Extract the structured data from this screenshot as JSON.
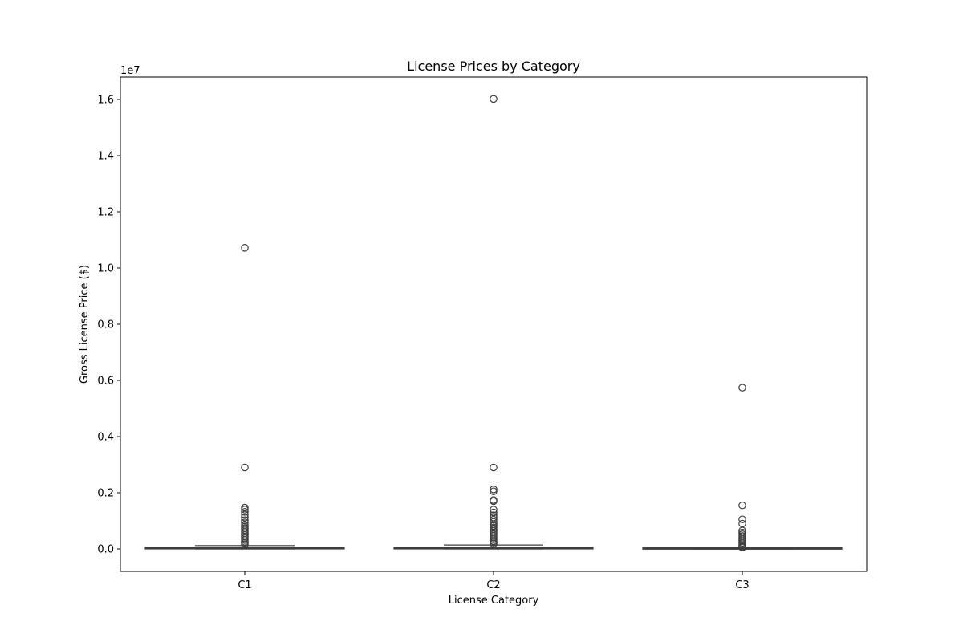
{
  "chart_data": {
    "type": "box",
    "title": "License Prices by Category",
    "xlabel": "License Category",
    "ylabel": "Gross License Price ($)",
    "y_offset_label": "1e7",
    "y_scale_multiplier": 10000000,
    "ylim": [
      -0.08,
      1.68
    ],
    "y_ticks": [
      0.0,
      0.2,
      0.4,
      0.6,
      0.8,
      1.0,
      1.2,
      1.4,
      1.6
    ],
    "y_tick_labels": [
      "0.0",
      "0.2",
      "0.4",
      "0.6",
      "0.8",
      "1.0",
      "1.2",
      "1.4",
      "1.6"
    ],
    "categories": [
      "C1",
      "C2",
      "C3"
    ],
    "grid": false,
    "colors": {
      "box_fill": "#3274a1",
      "box_edge": "#3f3f3f",
      "outlier_edge": "#3f3f3f",
      "axis": "#000000"
    },
    "boxes": [
      {
        "category": "C1",
        "whisker_low": 0.0,
        "q1": 0.0,
        "median": 0.003,
        "q3": 0.006,
        "whisker_high": 0.012,
        "outliers": [
          1.072,
          0.29,
          0.147,
          0.14,
          0.132,
          0.122,
          0.112,
          0.102,
          0.094,
          0.086,
          0.08,
          0.074,
          0.068,
          0.062,
          0.056,
          0.05,
          0.044,
          0.038,
          0.032,
          0.026,
          0.021,
          0.016
        ]
      },
      {
        "category": "C2",
        "whisker_low": 0.0,
        "q1": 0.0,
        "median": 0.003,
        "q3": 0.006,
        "whisker_high": 0.014,
        "outliers": [
          1.602,
          0.29,
          0.212,
          0.205,
          0.174,
          0.17,
          0.14,
          0.13,
          0.12,
          0.112,
          0.104,
          0.096,
          0.088,
          0.082,
          0.076,
          0.07,
          0.064,
          0.058,
          0.052,
          0.046,
          0.04,
          0.034,
          0.028,
          0.023,
          0.018
        ]
      },
      {
        "category": "C3",
        "whisker_low": 0.0,
        "q1": 0.0,
        "median": 0.001,
        "q3": 0.002,
        "whisker_high": 0.004,
        "outliers": [
          0.574,
          0.155,
          0.105,
          0.09,
          0.065,
          0.058,
          0.052,
          0.046,
          0.04,
          0.034,
          0.028,
          0.022,
          0.017,
          0.012,
          0.008,
          0.005
        ]
      }
    ]
  }
}
